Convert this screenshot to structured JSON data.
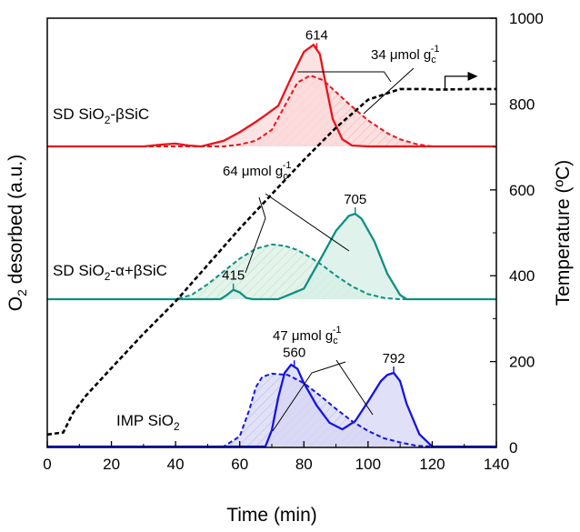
{
  "chart_data": {
    "type": "line",
    "xlabel": "Time (min)",
    "ylabel_left": "O",
    "ylabel_left_sub": "2",
    "ylabel_left_rest": " desorbed (a.u.)",
    "ylabel_right": "Temperature (ºC)",
    "xlim": [
      0,
      140
    ],
    "xticks": [
      "0",
      "20",
      "40",
      "60",
      "80",
      "100",
      "120",
      "140"
    ],
    "y2lim": [
      0,
      1000
    ],
    "y2ticks": [
      "0",
      "200",
      "400",
      "600",
      "800",
      "1000"
    ],
    "grid": false,
    "temperature": {
      "style": "dashed",
      "color": "#000000",
      "x": [
        0,
        5,
        8,
        12,
        20,
        30,
        40,
        50,
        60,
        70,
        80,
        90,
        100,
        110,
        118,
        120,
        125,
        132,
        140
      ],
      "y": [
        30,
        35,
        80,
        120,
        185,
        265,
        340,
        425,
        510,
        590,
        670,
        745,
        810,
        835,
        835,
        834,
        834,
        835,
        835
      ]
    },
    "panels": [
      {
        "name": "SD SiO",
        "name_sub": "2",
        "name_rest": "-βSiC",
        "color": "#e8141c",
        "fill": "#fbdada",
        "baseline": 0,
        "solid": {
          "x": [
            0,
            30,
            36,
            40,
            44,
            48,
            55,
            60,
            65,
            68,
            72,
            76,
            80,
            83,
            85,
            87,
            89,
            92,
            95,
            100,
            120,
            140
          ],
          "y": [
            0,
            0,
            0.04,
            0.06,
            0.02,
            0,
            0.12,
            0.3,
            0.52,
            0.66,
            0.86,
            1.45,
            2.0,
            2.15,
            1.95,
            1.25,
            0.58,
            0.15,
            0.02,
            0,
            0,
            0
          ]
        },
        "dashed": {
          "x": [
            0,
            55,
            60,
            65,
            70,
            74,
            78,
            82,
            86,
            90,
            94,
            100,
            106,
            110,
            115,
            120,
            140
          ],
          "y": [
            0,
            0,
            0.04,
            0.12,
            0.35,
            0.85,
            1.35,
            1.5,
            1.4,
            1.15,
            0.9,
            0.55,
            0.28,
            0.15,
            0.05,
            0,
            0
          ]
        },
        "peak_labels": [
          {
            "x": 84,
            "text": "614"
          }
        ],
        "uptake": {
          "pre": "34 ",
          "mu": "μ",
          "post": "mol g",
          "sub": "c",
          "sup": "-1"
        }
      },
      {
        "name": "SD SiO",
        "name_sub": "2",
        "name_rest": "-α+βSiC",
        "color": "#0f8f82",
        "fill": "#d4efe6",
        "baseline": 0,
        "solid": {
          "x": [
            0,
            54,
            56,
            58,
            60,
            62,
            64,
            72,
            80,
            86,
            90,
            94,
            96,
            98,
            102,
            106,
            110,
            112,
            140
          ],
          "y": [
            0,
            0,
            0.1,
            0.22,
            0.16,
            0.03,
            0,
            0,
            0.25,
            1.05,
            1.6,
            1.95,
            2.0,
            1.88,
            1.35,
            0.6,
            0.1,
            0,
            0
          ]
        },
        "dashed": {
          "x": [
            0,
            40,
            45,
            50,
            55,
            60,
            65,
            70,
            74,
            78,
            82,
            86,
            90,
            95,
            100,
            105,
            110,
            140
          ],
          "y": [
            0,
            0,
            0.1,
            0.35,
            0.65,
            0.95,
            1.18,
            1.28,
            1.25,
            1.15,
            0.98,
            0.78,
            0.55,
            0.3,
            0.12,
            0.03,
            0,
            0
          ]
        },
        "peak_labels": [
          {
            "x": 58,
            "text": "415"
          },
          {
            "x": 96,
            "text": "705"
          }
        ],
        "uptake": {
          "pre": "64 ",
          "mu": "μ",
          "post": "mol g",
          "sub": "c",
          "sup": "-1"
        }
      },
      {
        "name": "IMP SiO",
        "name_sub": "2",
        "name_rest": "",
        "color": "#1515e0",
        "fill": "#d6d6f5",
        "baseline": 0,
        "solid": {
          "x": [
            0,
            68,
            70,
            72,
            74,
            76,
            78,
            80,
            84,
            88,
            92,
            96,
            100,
            104,
            106,
            108,
            110,
            112,
            116,
            120,
            140
          ],
          "y": [
            0,
            0,
            0.4,
            1.2,
            1.8,
            2.0,
            1.9,
            1.55,
            1.0,
            0.58,
            0.42,
            0.62,
            1.1,
            1.6,
            1.75,
            1.8,
            1.6,
            1.05,
            0.3,
            0,
            0
          ]
        },
        "dashed": {
          "x": [
            0,
            55,
            60,
            63,
            65,
            67,
            70,
            75,
            80,
            85,
            90,
            95,
            100,
            105,
            110,
            115,
            120,
            140
          ],
          "y": [
            0,
            0,
            0.25,
            0.9,
            1.45,
            1.7,
            1.78,
            1.75,
            1.55,
            1.25,
            0.92,
            0.62,
            0.38,
            0.2,
            0.1,
            0.02,
            0,
            0
          ]
        },
        "peak_labels": [
          {
            "x": 77,
            "text": "560"
          },
          {
            "x": 108,
            "text": "792"
          }
        ],
        "uptake": {
          "pre": "47 ",
          "mu": "μ",
          "post": "mol g",
          "sub": "c",
          "sup": "-1"
        }
      }
    ]
  }
}
